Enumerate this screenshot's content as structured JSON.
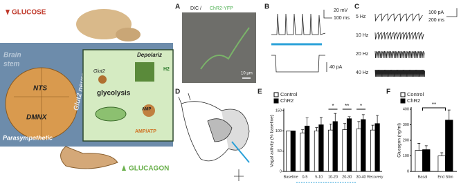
{
  "schematic": {
    "glucose": "GLUCOSE",
    "brain_stem": [
      "Brain",
      "stem"
    ],
    "nts": "NTS",
    "dmnx": "DMNX",
    "glut2_neurons": "Glut2 neurons",
    "depolarize": "Depolariz",
    "glut2": "Glut2",
    "glycolysis": "glycolysis",
    "amp": "AMP",
    "h2": "H2",
    "amp_atp": "AMP/ATP",
    "parasympathetic": "Parasympathetic",
    "glucagon": "GLUCAGON"
  },
  "panel_a": {
    "label": "A",
    "header": [
      "DIC /",
      "ChR2-YFP"
    ],
    "scale": "10 μm"
  },
  "panel_b": {
    "label": "B",
    "scale_v": "20 mV",
    "scale_t": "100 ms",
    "scale_i": "40 pA"
  },
  "panel_c": {
    "label": "C",
    "rows": [
      "5 Hz",
      "10 Hz",
      "20 Hz",
      "40 Hz"
    ],
    "scale_i": "100 pA",
    "scale_t": "200 ms"
  },
  "panel_d": {
    "label": "D"
  },
  "panel_e": {
    "label": "E",
    "ylabel": "Vagal activity (% baseline)",
    "categories": [
      "Baseline",
      "0-5",
      "5-10",
      "10-20",
      "20-30",
      "30-40",
      "Recovery"
    ],
    "series": [
      {
        "name": "Control",
        "color": "#ffffff",
        "values": [
          100,
          95,
          100,
          102,
          103,
          105,
          102
        ],
        "errors": [
          0,
          8,
          8,
          15,
          15,
          18,
          12
        ]
      },
      {
        "name": "ChR2",
        "color": "#000000",
        "values": [
          100,
          112,
          115,
          123,
          130,
          128,
          118
        ],
        "errors": [
          0,
          20,
          18,
          20,
          5,
          12,
          20
        ]
      }
    ],
    "significance": [
      null,
      null,
      null,
      "*",
      "**",
      "*",
      null
    ],
    "ylim": [
      0,
      150
    ],
    "yticks": [
      0,
      50,
      100,
      150
    ]
  },
  "panel_f": {
    "label": "F",
    "ylabel": "Glucagon (ng/ml)",
    "categories": [
      "Basal",
      "End Stim"
    ],
    "series": [
      {
        "name": "Control",
        "color": "#ffffff",
        "values": [
          135,
          100
        ],
        "errors": [
          45,
          20
        ]
      },
      {
        "name": "ChR2",
        "color": "#000000",
        "values": [
          140,
          330
        ],
        "errors": [
          25,
          65
        ]
      }
    ],
    "significance": "**",
    "ylim": [
      0,
      400
    ],
    "yticks": [
      0,
      100,
      200,
      300,
      400
    ]
  }
}
